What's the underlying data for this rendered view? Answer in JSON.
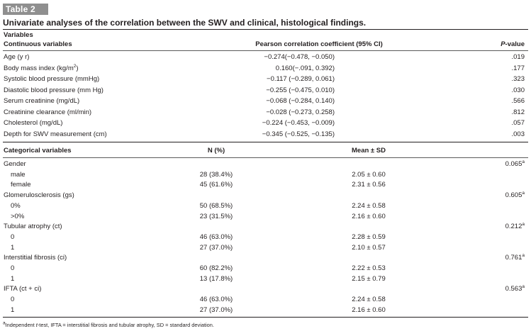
{
  "table_tag": "Table 2",
  "caption": "Univariate analyses of the correlation between the SWV and clinical, histological findings.",
  "header": {
    "variables": "Variables",
    "continuous": "Continuous variables",
    "pearson": "Pearson correlation coefficient (95% CI)",
    "pvalue_italic": "P",
    "pvalue_rest": "-value"
  },
  "continuous_rows": [
    {
      "label": "Age (y r)",
      "sup": "",
      "coef": "−0.274(−0.478, −0.050)",
      "p": ".019"
    },
    {
      "label": "Body mass index (kg/m",
      "sup": "2",
      "label_end": ")",
      "coef": "0.160(−.091, 0.392)",
      "p": ".177"
    },
    {
      "label": "Systolic blood pressure (mmHg)",
      "sup": "",
      "coef": "−0.117 (−0.289, 0.061)",
      "p": ".323"
    },
    {
      "label": "Diastolic blood pressure (mm Hg)",
      "sup": "",
      "coef": "−0.255 (−0.475, 0.010)",
      "p": ".030"
    },
    {
      "label": "Serum creatinine (mg/dL)",
      "sup": "",
      "coef": "−0.068 (−0.284, 0.140)",
      "p": ".566"
    },
    {
      "label": "Creatinine clearance (ml/min)",
      "sup": "",
      "coef": "−0.028 (−0.273, 0.258)",
      "p": ".812"
    },
    {
      "label": "Cholesterol (mg/dL)",
      "sup": "",
      "coef": "−0.224 (−0.453, −0.009)",
      "p": ".057"
    },
    {
      "label": "Depth for SWV measurement (cm)",
      "sup": "",
      "coef": "−0.345 (−0.525, −0.135)",
      "p": ".003"
    }
  ],
  "cat_header": {
    "label": "Categorical variables",
    "n": "N (%)",
    "mean": "Mean ± SD"
  },
  "categorical_groups": [
    {
      "name": "Gender",
      "p": "0.065",
      "p_sup": "a",
      "rows": [
        {
          "label": "male",
          "n": "28 (38.4%)",
          "mean": "2.05 ± 0.60"
        },
        {
          "label": "female",
          "n": "45 (61.6%)",
          "mean": "2.31 ± 0.56"
        }
      ]
    },
    {
      "name": "Glomerulosclerosis (gs)",
      "p": "0.605",
      "p_sup": "a",
      "rows": [
        {
          "label": "0%",
          "n": "50 (68.5%)",
          "mean": "2.24 ± 0.58"
        },
        {
          "label": ">0%",
          "n": "23 (31.5%)",
          "mean": "2.16 ± 0.60"
        }
      ]
    },
    {
      "name": "Tubular atrophy (ct)",
      "p": "0.212",
      "p_sup": "a",
      "rows": [
        {
          "label": "0",
          "n": "46 (63.0%)",
          "mean": "2.28 ± 0.59"
        },
        {
          "label": "1",
          "n": "27 (37.0%)",
          "mean": "2.10 ± 0.57"
        }
      ]
    },
    {
      "name": "Interstitial fibrosis (ci)",
      "p": "0.761",
      "p_sup": "a",
      "rows": [
        {
          "label": "0",
          "n": "60 (82.2%)",
          "mean": "2.22 ± 0.53"
        },
        {
          "label": "1",
          "n": "13 (17.8%)",
          "mean": "2.15 ± 0.79"
        }
      ]
    },
    {
      "name": "IFTA (ct + ci)",
      "p": "0.563",
      "p_sup": "a",
      "rows": [
        {
          "label": "0",
          "n": "46 (63.0%)",
          "mean": "2.24 ± 0.58"
        },
        {
          "label": "1",
          "n": "27 (37.0%)",
          "mean": "2.16 ± 0.60"
        }
      ]
    }
  ],
  "footnote": {
    "sup": "a",
    "pre": "Independent ",
    "t_italic": "t",
    "post": "-test, IFTA = interstitial fibrosis and tubular atrophy, SD = standard deviation."
  }
}
